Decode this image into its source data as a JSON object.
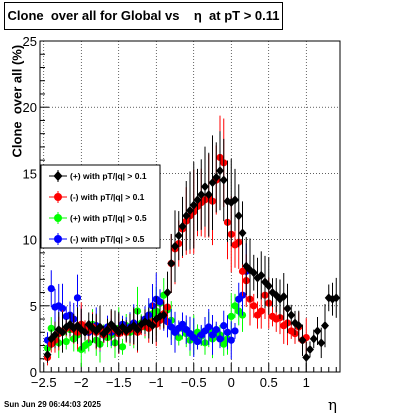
{
  "title": "Clone  over all for Global vs    η  at pT > 0.11",
  "timestamp": "Sun Jun 29 06:44:03 2025",
  "colors": {
    "frame": "#000000",
    "grid": "#000000"
  },
  "chart_data": {
    "type": "scatter",
    "title": "Clone  over all for Global vs    η  at pT > 0.11",
    "xlabel": "η",
    "ylabel": "Clone  over all (%)",
    "xlim": [
      -2.55,
      1.45
    ],
    "ylim": [
      0,
      25
    ],
    "xticks": [
      -2.5,
      -2,
      -1.5,
      -1,
      -0.5,
      0,
      0.5,
      1
    ],
    "xtick_labels": [
      "−2.5",
      "−2",
      "−1.5",
      "−1",
      "−0.5",
      "0",
      "0.5",
      "1"
    ],
    "yticks": [
      0,
      5,
      10,
      15,
      20,
      25
    ],
    "ytick_labels": [
      "0",
      "5",
      "10",
      "15",
      "20",
      "25"
    ],
    "grid": true,
    "legend_position": "left-middle",
    "series": [
      {
        "name": "(+) with pT/|q| > 0.1",
        "color": "#000000",
        "marker": "diamond",
        "x": [
          -2.45,
          -2.4,
          -2.35,
          -2.3,
          -2.25,
          -2.2,
          -2.15,
          -2.1,
          -2.05,
          -2.0,
          -1.95,
          -1.9,
          -1.85,
          -1.8,
          -1.75,
          -1.7,
          -1.65,
          -1.6,
          -1.55,
          -1.5,
          -1.45,
          -1.4,
          -1.35,
          -1.3,
          -1.25,
          -1.2,
          -1.15,
          -1.1,
          -1.05,
          -1.0,
          -0.95,
          -0.9,
          -0.85,
          -0.8,
          -0.75,
          -0.7,
          -0.65,
          -0.6,
          -0.55,
          -0.5,
          -0.45,
          -0.4,
          -0.35,
          -0.3,
          -0.25,
          -0.2,
          -0.15,
          -0.1,
          -0.05,
          0.0,
          0.05,
          0.1,
          0.15,
          0.2,
          0.25,
          0.3,
          0.35,
          0.4,
          0.45,
          0.5,
          0.55,
          0.6,
          0.65,
          0.7,
          0.75,
          0.8,
          0.85,
          0.9,
          0.95,
          1.0,
          1.05,
          1.1,
          1.15,
          1.2,
          1.25,
          1.3,
          1.35,
          1.4
        ],
        "y": [
          1.3,
          2.5,
          2.8,
          3.2,
          3.0,
          3.4,
          3.6,
          3.3,
          3.5,
          3.2,
          3.0,
          3.6,
          3.3,
          3.1,
          3.4,
          2.9,
          3.2,
          3.6,
          3.3,
          3.0,
          3.4,
          3.1,
          3.3,
          3.5,
          3.2,
          3.6,
          3.8,
          3.7,
          3.5,
          4.0,
          4.2,
          4.3,
          6.0,
          8.2,
          9.5,
          10.3,
          11.0,
          11.8,
          12.2,
          12.6,
          13.0,
          13.4,
          14.0,
          13.4,
          14.3,
          14.7,
          15.2,
          14.5,
          12.9,
          12.8,
          13.0,
          11.8,
          10.5,
          8.0,
          7.7,
          7.5,
          7.1,
          7.3,
          6.8,
          6.5,
          6.0,
          5.8,
          5.5,
          5.7,
          4.8,
          4.3,
          3.7,
          3.5,
          2.4,
          1.1,
          1.7,
          2.5,
          3.1,
          2.2,
          3.5,
          5.6,
          5.5,
          5.6
        ]
      },
      {
        "name": "(-) with pT/|q| > 0.1",
        "color": "#ff0000",
        "marker": "circle",
        "x": [
          -2.45,
          -2.4,
          -2.35,
          -2.3,
          -2.25,
          -2.2,
          -2.15,
          -2.1,
          -2.05,
          -2.0,
          -1.95,
          -1.9,
          -1.85,
          -1.8,
          -1.75,
          -1.7,
          -1.65,
          -1.6,
          -1.55,
          -1.5,
          -1.45,
          -1.4,
          -1.35,
          -1.3,
          -1.25,
          -1.2,
          -1.15,
          -1.1,
          -1.05,
          -1.0,
          -0.95,
          -0.9,
          -0.85,
          -0.8,
          -0.75,
          -0.7,
          -0.65,
          -0.6,
          -0.55,
          -0.5,
          -0.45,
          -0.4,
          -0.35,
          -0.3,
          -0.25,
          -0.2,
          -0.15,
          -0.1,
          -0.05,
          0.0,
          0.05,
          0.1,
          0.15,
          0.2,
          0.25,
          0.3,
          0.35,
          0.4,
          0.45,
          0.5,
          0.55,
          0.6,
          0.65,
          0.7,
          0.75,
          0.8,
          0.85,
          0.9,
          0.95,
          1.0
        ],
        "y": [
          1.1,
          2.1,
          2.4,
          2.9,
          3.1,
          3.3,
          3.5,
          3.2,
          3.0,
          3.6,
          3.3,
          3.1,
          3.4,
          3.0,
          3.2,
          2.8,
          3.1,
          3.5,
          3.2,
          2.9,
          3.3,
          3.0,
          3.2,
          3.4,
          3.0,
          3.4,
          3.6,
          3.3,
          3.8,
          3.6,
          3.9,
          4.4,
          4.9,
          8.2,
          9.3,
          9.7,
          10.8,
          11.4,
          11.8,
          12.1,
          12.5,
          12.8,
          13.0,
          13.3,
          12.9,
          14.5,
          16.2,
          15.8,
          11.3,
          10.4,
          9.6,
          9.8,
          7.6,
          6.9,
          5.5,
          5.0,
          4.3,
          4.6,
          5.8,
          5.2,
          4.2,
          4.0,
          4.1,
          3.5,
          3.7,
          3.1,
          2.9,
          3.4,
          2.4,
          2.6
        ]
      },
      {
        "name": "(+) with pT/|q| > 0.5",
        "color": "#00ff00",
        "marker": "circle",
        "x": [
          -2.45,
          -2.4,
          -2.35,
          -2.3,
          -2.25,
          -2.2,
          -2.15,
          -2.1,
          -2.05,
          -2.0,
          -1.95,
          -1.9,
          -1.85,
          -1.8,
          -1.75,
          -1.7,
          -1.65,
          -1.6,
          -1.55,
          -1.5,
          -1.45,
          -1.4,
          -1.35,
          -1.3,
          -1.25,
          -1.2,
          -1.15,
          -1.1,
          -1.05,
          -1.0,
          -0.95,
          -0.9,
          -0.85,
          -0.8,
          -0.75,
          -0.7,
          -0.65,
          -0.6,
          -0.55,
          -0.5,
          -0.45,
          -0.4,
          -0.35,
          -0.3,
          -0.25,
          -0.2,
          -0.15,
          -0.1,
          -0.05,
          0.0,
          0.05,
          0.1,
          0.15
        ],
        "y": [
          1.8,
          3.3,
          2.6,
          2.2,
          3.0,
          2.3,
          3.2,
          2.5,
          2.8,
          1.7,
          2.0,
          2.2,
          3.6,
          2.4,
          2.1,
          3.0,
          2.6,
          2.8,
          2.2,
          3.3,
          1.9,
          3.5,
          3.0,
          3.1,
          4.6,
          3.7,
          3.4,
          4.0,
          4.4,
          4.6,
          5.2,
          5.8,
          4.7,
          3.9,
          3.0,
          2.6,
          3.3,
          2.9,
          2.4,
          2.8,
          3.0,
          2.7,
          2.2,
          3.2,
          2.5,
          3.0,
          2.8,
          2.1,
          2.5,
          4.2,
          5.0,
          4.6,
          4.3
        ]
      },
      {
        "name": "(-) with pT/|q| > 0.5",
        "color": "#0000ff",
        "marker": "circle",
        "x": [
          -2.45,
          -2.4,
          -2.35,
          -2.3,
          -2.25,
          -2.2,
          -2.15,
          -2.1,
          -2.05,
          -2.0,
          -1.95,
          -1.9,
          -1.85,
          -1.8,
          -1.75,
          -1.7,
          -1.65,
          -1.6,
          -1.55,
          -1.5,
          -1.45,
          -1.4,
          -1.35,
          -1.3,
          -1.25,
          -1.2,
          -1.15,
          -1.1,
          -1.05,
          -1.0,
          -0.95,
          -0.9,
          -0.85,
          -0.8,
          -0.75,
          -0.7,
          -0.65,
          -0.6,
          -0.55,
          -0.5,
          -0.45,
          -0.4,
          -0.35,
          -0.3,
          -0.25,
          -0.2,
          -0.15,
          -0.1,
          -0.05,
          0.0,
          0.05,
          0.1,
          0.15,
          0.2
        ],
        "y": [
          2.4,
          6.3,
          4.9,
          5.0,
          4.8,
          4.2,
          4.3,
          4.0,
          5.6,
          3.4,
          3.2,
          3.0,
          3.3,
          3.5,
          3.1,
          2.8,
          3.4,
          3.0,
          3.2,
          2.9,
          3.6,
          3.3,
          3.4,
          3.7,
          3.2,
          3.5,
          4.0,
          4.3,
          5.0,
          5.5,
          5.3,
          4.1,
          3.8,
          3.4,
          3.0,
          3.3,
          3.6,
          3.2,
          2.9,
          2.6,
          2.3,
          2.8,
          3.1,
          3.4,
          2.8,
          3.2,
          2.5,
          3.5,
          3.0,
          2.4,
          3.1,
          5.5,
          5.8,
          7.6
        ]
      }
    ]
  }
}
